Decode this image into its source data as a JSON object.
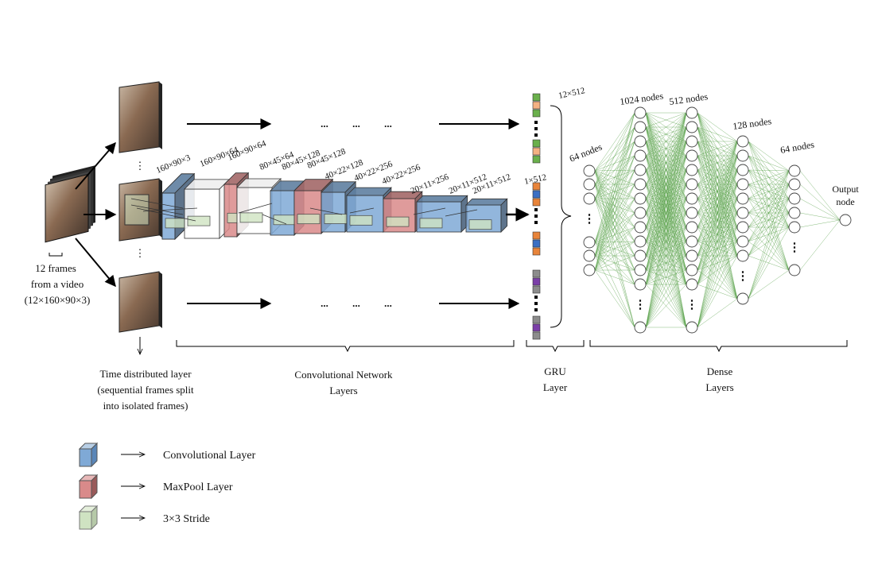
{
  "input": {
    "frames_line1": "12 frames",
    "frames_line2": "from a video",
    "frames_line3": "(12×160×90×3)"
  },
  "time_distributed": {
    "line1": "Time distributed layer",
    "line2": "(sequential frames split",
    "line3": "into isolated frames)"
  },
  "conv_section": {
    "line1": "Convolutional Network",
    "line2": "Layers",
    "dims": [
      "160×90×3",
      "160×90×64",
      "160×90×64",
      "80×45×64",
      "80×45×128",
      "80×45×128",
      "40×22×128",
      "40×22×256",
      "40×22×256",
      "20×11×256",
      "20×11×512",
      "20×11×512"
    ]
  },
  "gru_section": {
    "line1": "GRU",
    "line2": "Layer",
    "top_dim": "12×512",
    "mid_dim": "1×512"
  },
  "dense_section": {
    "line1": "Dense",
    "line2": "Layers",
    "layers": [
      "64 nodes",
      "1024 nodes",
      "512 nodes",
      "128 nodes",
      "64 nodes"
    ],
    "output_line1": "Output",
    "output_line2": "node"
  },
  "ellipsis": "...",
  "vertical_dots": "⋮",
  "legend": [
    {
      "label": "Convolutional Layer",
      "color": "#7fa9d6"
    },
    {
      "label": "MaxPool Layer",
      "color": "#d98a8a"
    },
    {
      "label": "3×3 Stride",
      "color": "#cfe3c2"
    }
  ],
  "colors": {
    "conv_blue": "#7fa9d6",
    "maxpool_red": "#d98a8a",
    "stride_green": "#cfe3c2",
    "edge_green": "#4a9a3a",
    "gru_green": "#6ab04c",
    "gru_orange": "#e8843a",
    "gru_blue": "#3a6fc4",
    "gru_purple": "#7b3fa8",
    "gru_peach": "#f4b183",
    "gru_gray": "#8c8c8c"
  }
}
